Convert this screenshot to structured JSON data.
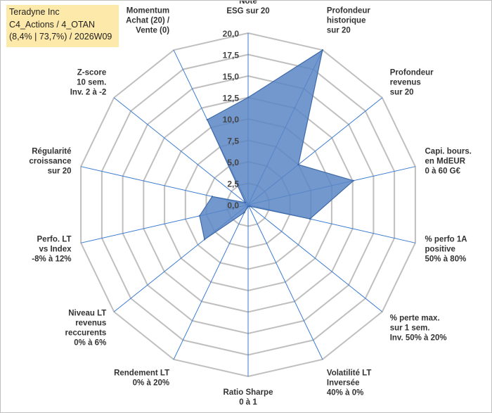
{
  "info": {
    "line1": "Teradyne Inc",
    "line2": "C4_Actions / 4_OTAN",
    "line3": "(8,4% | 73,7%) / 2026W09"
  },
  "chart_data": {
    "type": "radar",
    "title": "",
    "rmax": 20,
    "ticks": [
      "0,0",
      "2,5",
      "5,0",
      "7,5",
      "10,0",
      "12,5",
      "15,0",
      "17,5",
      "20,0"
    ],
    "axes": [
      {
        "label": [
          "Note",
          "ESG sur 20"
        ],
        "value": 12.5
      },
      {
        "label": [
          "Profondeur",
          "historique",
          "sur 20"
        ],
        "value": 20.0
      },
      {
        "label": [
          "Profondeur",
          "revenus",
          "sur 20"
        ],
        "value": 7.5
      },
      {
        "label": [
          "Capi. bours.",
          "en MdEUR",
          "0 à 60 G€"
        ],
        "value": 12.6
      },
      {
        "label": [
          "% perfo 1A",
          "positive",
          "50% à 80%"
        ],
        "value": 7.4
      },
      {
        "label": [
          "% perte max.",
          "sur 1 sem.",
          "Inv. 50% à 20%"
        ],
        "value": 0.3
      },
      {
        "label": [
          "Volatilité LT",
          "Inversée",
          "40% à 0%"
        ],
        "value": 0.2
      },
      {
        "label": [
          "Ratio Sharpe",
          "0 à 1"
        ],
        "value": 0.2
      },
      {
        "label": [
          "Rendement LT",
          "0% à 20%"
        ],
        "value": 1.0
      },
      {
        "label": [
          "Niveau LT",
          "revenus",
          "reccurents",
          "0% à 6%"
        ],
        "value": 6.5
      },
      {
        "label": [
          "Perfo. LT",
          "vs Index",
          "-8% à 12%"
        ],
        "value": 5.8
      },
      {
        "label": [
          "Régularité",
          "croissance",
          "sur 20"
        ],
        "value": 4.3
      },
      {
        "label": [
          "Z-score",
          "10 sem.",
          "Inv. 2 à -2"
        ],
        "value": 0.4
      },
      {
        "label": [
          "Momentum",
          "Achat (20) /",
          "Vente (0)"
        ],
        "value": 11.0
      }
    ],
    "colors": {
      "fill": "#5b86c5",
      "stroke": "#3f6aa8",
      "grid": "#bfbfbf",
      "spoke": "#3b7bd0"
    }
  }
}
